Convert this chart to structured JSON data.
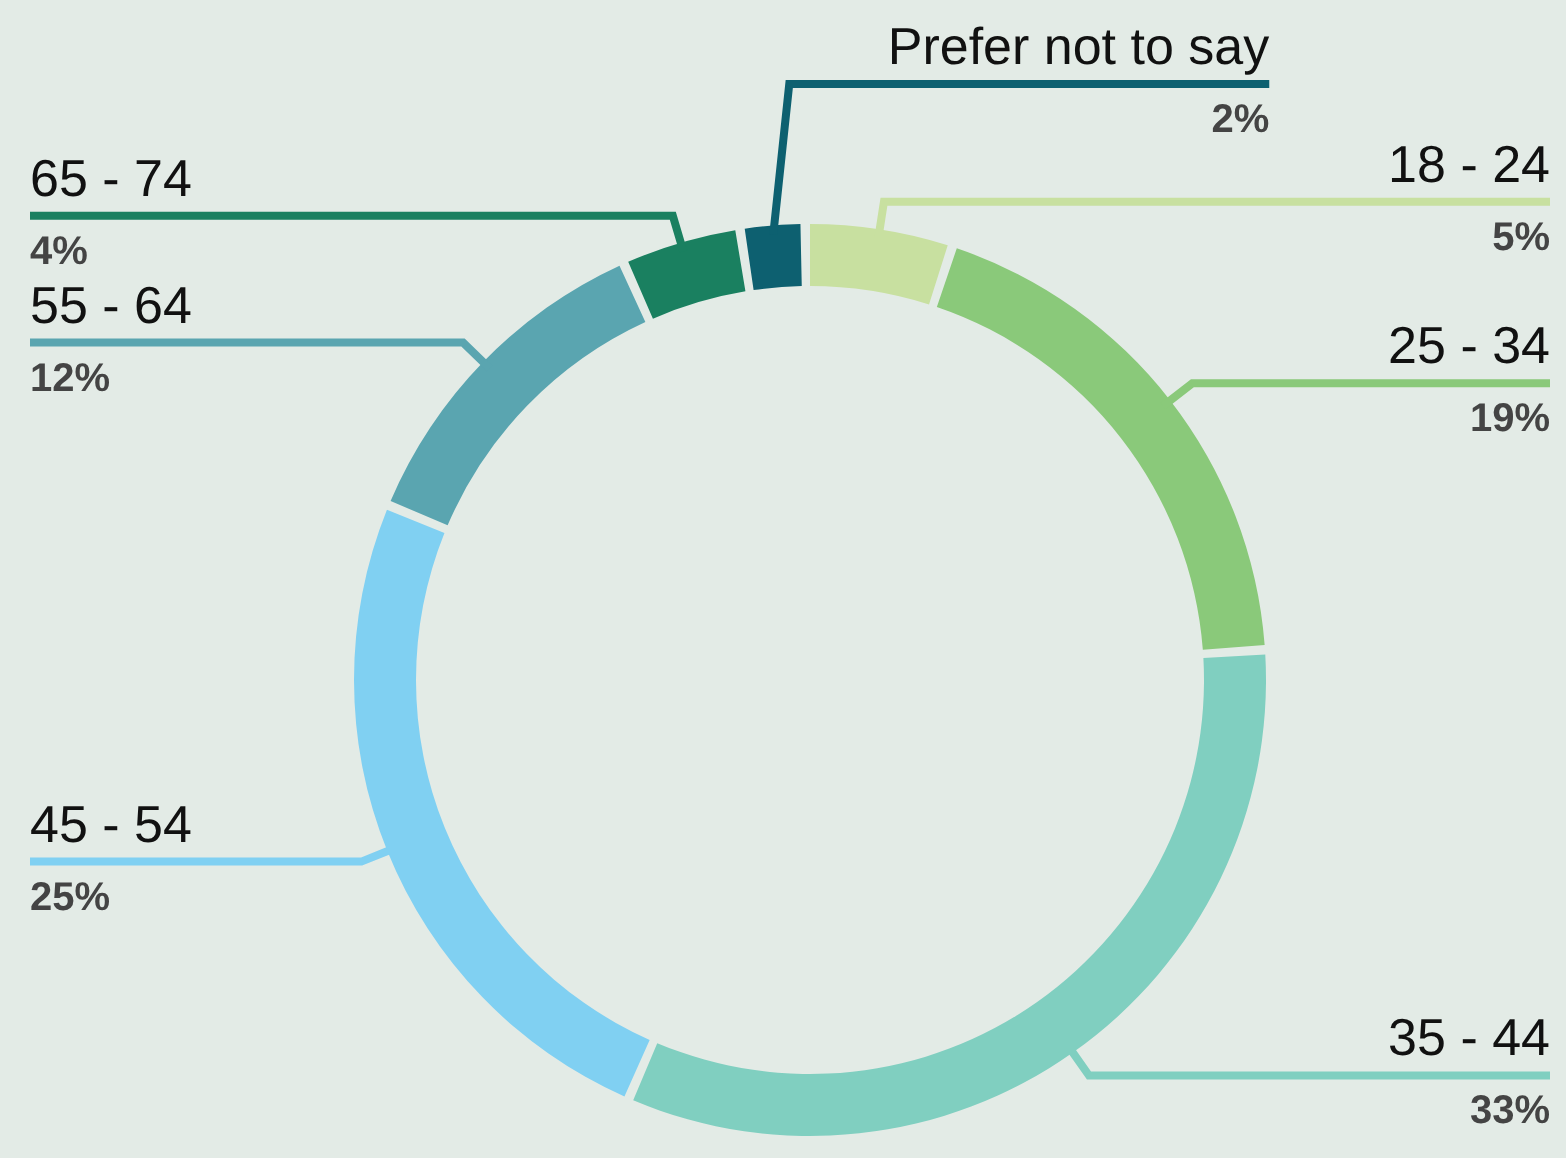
{
  "chart_data": {
    "type": "donut",
    "categories": [
      "18 - 24",
      "25 - 34",
      "35 - 44",
      "45 - 54",
      "55 - 64",
      "65 - 74",
      "Prefer not to say"
    ],
    "values": [
      5,
      19,
      33,
      25,
      12,
      4,
      2
    ],
    "value_labels": [
      "5%",
      "19%",
      "33%",
      "25%",
      "12%",
      "4%",
      "2%"
    ],
    "colors": [
      "#c8e0a0",
      "#8ac97a",
      "#80cfc0",
      "#80d0f2",
      "#5aa5b0",
      "#1a8060",
      "#0d6070"
    ]
  }
}
